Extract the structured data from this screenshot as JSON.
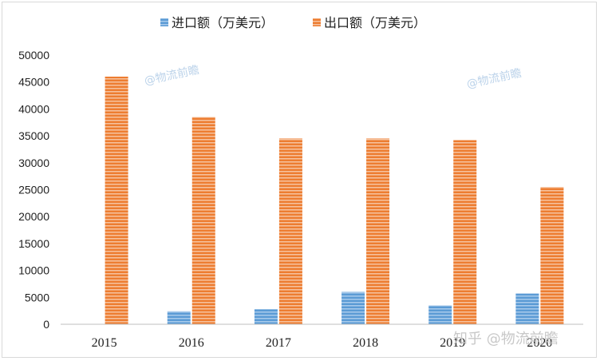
{
  "chart_data": {
    "type": "bar",
    "categories": [
      "2015",
      "2016",
      "2017",
      "2018",
      "2019",
      "2020"
    ],
    "series": [
      {
        "name": "进口额（万美元）",
        "values": [
          0,
          2400,
          2800,
          6000,
          3500,
          5700
        ]
      },
      {
        "name": "出口额（万美元）",
        "values": [
          46000,
          38500,
          34500,
          34500,
          34200,
          25500
        ]
      }
    ],
    "ylim": [
      0,
      50000
    ],
    "yticks": [
      0,
      5000,
      10000,
      15000,
      20000,
      25000,
      30000,
      35000,
      40000,
      45000,
      50000
    ],
    "grid": false,
    "legend_position": "top"
  },
  "colors": {
    "import": "#5b9bd5",
    "import_stripe": "#a9cbec",
    "export": "#ed7d31",
    "export_stripe": "#f6c3a0",
    "axis": "#bfbfbf"
  },
  "watermarks": {
    "wm1": "@物流前瞻",
    "wm2": "@物流前瞻",
    "brand": "知乎 @物流前瞻"
  }
}
